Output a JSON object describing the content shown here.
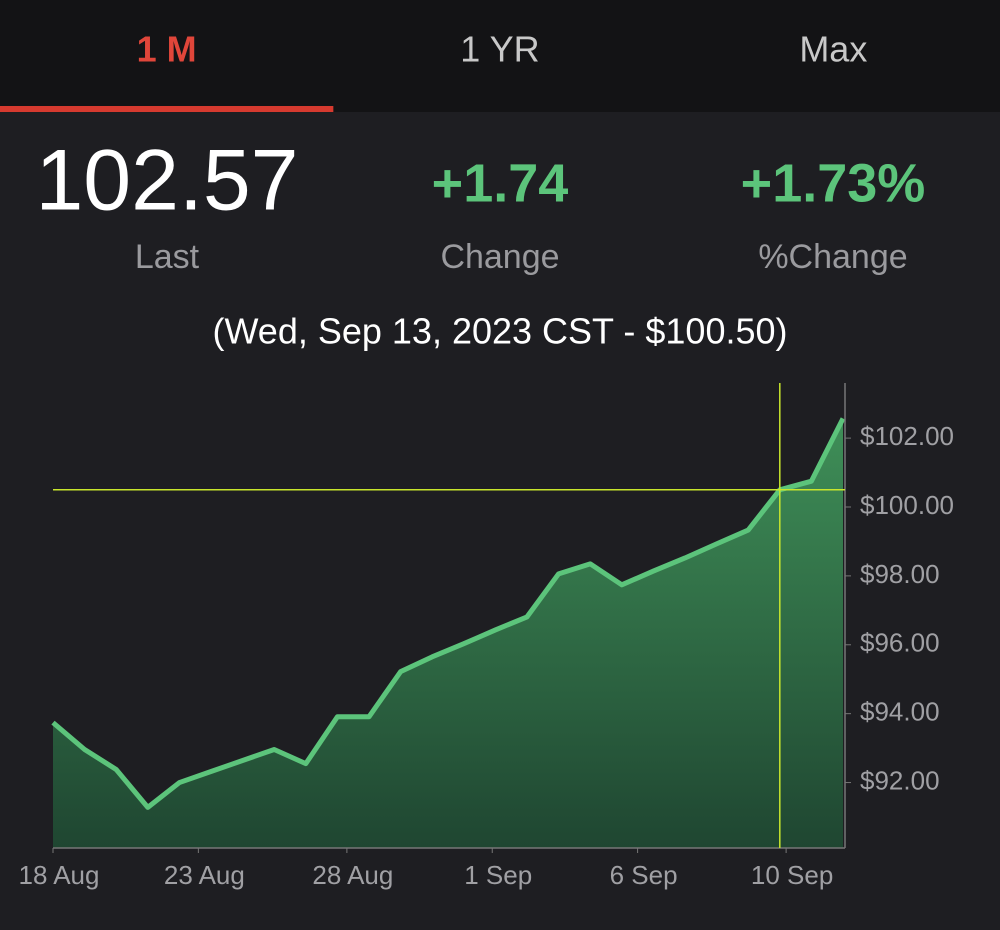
{
  "tabs": [
    "1 M",
    "1 YR",
    "Max"
  ],
  "active_tab": 0,
  "stats": [
    {
      "value": "102.57",
      "label": "Last"
    },
    {
      "value": "+1.74",
      "label": "Change"
    },
    {
      "value": "+1.73%",
      "label": "%Change"
    }
  ],
  "chart_data": {
    "type": "area",
    "title": "(Wed, Sep 13, 2023 CST - $100.50)",
    "color": "#5cc47b",
    "values": [
      93.74,
      92.96,
      92.38,
      91.28,
      92.0,
      92.32,
      92.64,
      92.96,
      92.55,
      93.91,
      93.91,
      95.22,
      95.65,
      96.03,
      96.43,
      96.81,
      98.06,
      98.35,
      97.74,
      98.14,
      98.52,
      98.93,
      99.33,
      100.5,
      100.75,
      102.57
    ],
    "crosshair": {
      "index": 23,
      "value": 100.5,
      "color": "#c8e62c"
    },
    "xlim": [
      0,
      25
    ],
    "xticks": [
      {
        "value": 0,
        "label": "18 Aug"
      },
      {
        "value": 4.6,
        "label": "23 Aug"
      },
      {
        "value": 9.3,
        "label": "28 Aug"
      },
      {
        "value": 13.9,
        "label": "1 Sep"
      },
      {
        "value": 18.5,
        "label": "6 Sep"
      },
      {
        "value": 23.2,
        "label": "10 Sep"
      }
    ],
    "ylim": [
      90.1,
      103.6
    ],
    "yticks": [
      {
        "value": 92,
        "label": "$92.00"
      },
      {
        "value": 94,
        "label": "$94.00"
      },
      {
        "value": 96,
        "label": "$96.00"
      },
      {
        "value": 98,
        "label": "$98.00"
      },
      {
        "value": 100,
        "label": "$100.00"
      },
      {
        "value": 102,
        "label": "$102.00"
      }
    ]
  }
}
